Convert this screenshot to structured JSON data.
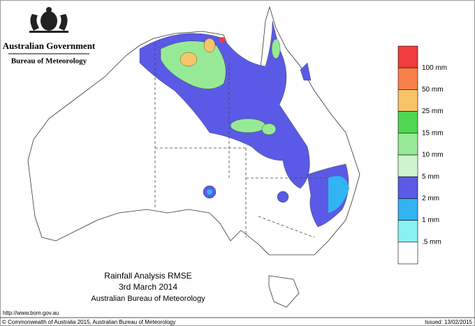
{
  "header": {
    "line1": "Australian Government",
    "line2": "Bureau of Meteorology"
  },
  "legend": {
    "colors": [
      "#f03c3c",
      "#f8804a",
      "#f8c468",
      "#50d650",
      "#96ea96",
      "#cdf6cd",
      "#5a5ae6",
      "#32b4f2",
      "#88f2f2",
      "#ffffff"
    ],
    "labels": [
      "100 mm",
      "50 mm",
      "25 mm",
      "15 mm",
      "10 mm",
      "5 mm",
      "2 mm",
      "1 mm",
      ".5 mm"
    ]
  },
  "caption": {
    "title": "Rainfall Analysis RMSE",
    "date": "3rd  March  2014",
    "source": "Australian Bureau of Meteorology"
  },
  "footer": {
    "url": "http://www.bom.gov.au",
    "copyright": "© Commonwealth of Australia 2015, Australian Bureau of Meteorology",
    "issued": "Issued: 13/02/2015"
  }
}
